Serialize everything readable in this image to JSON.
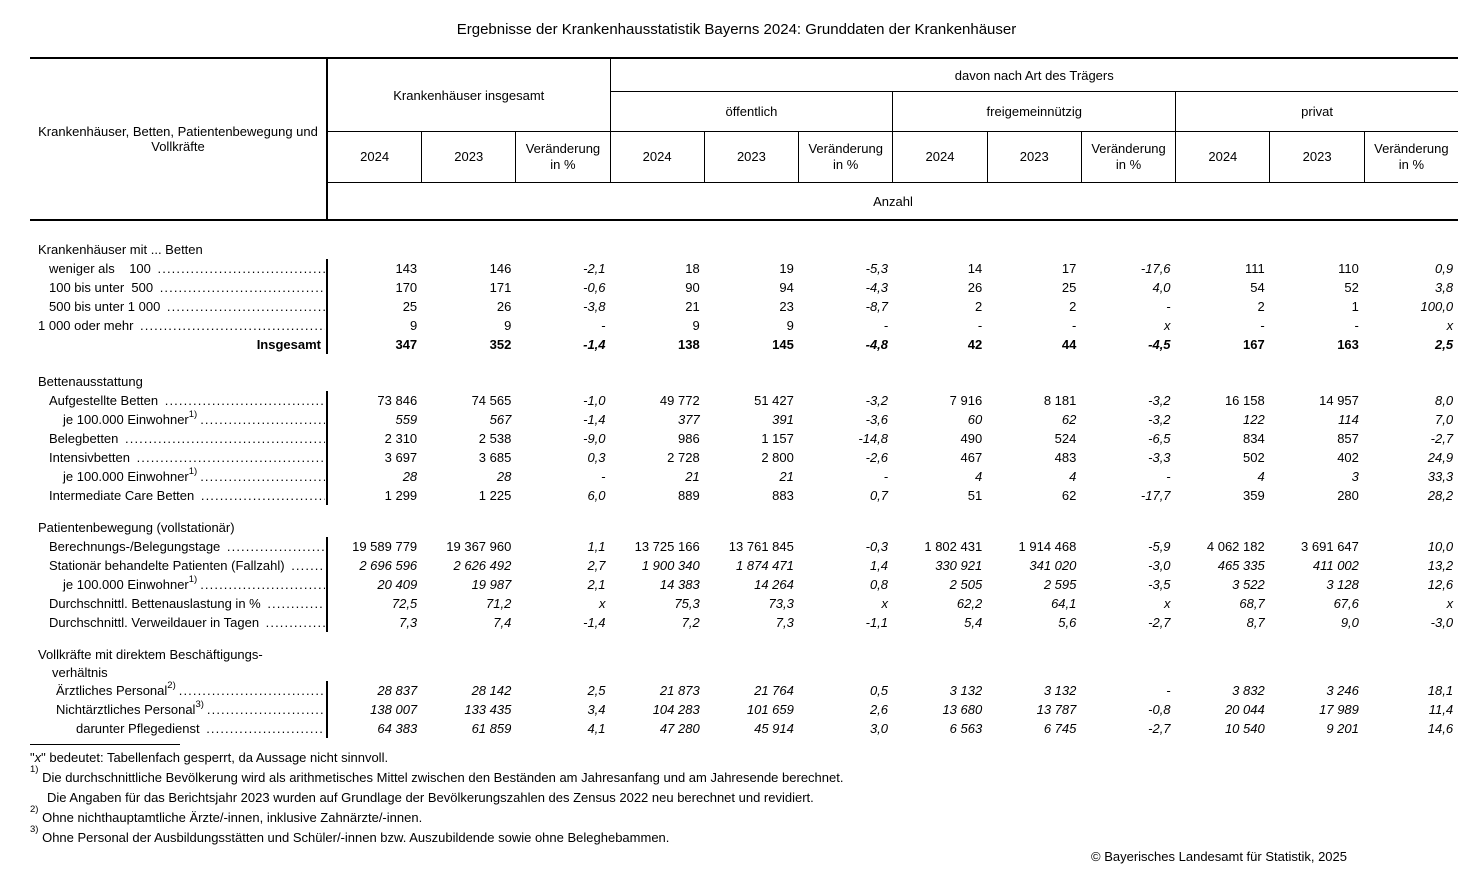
{
  "title": "Ergebnisse der Krankenhausstatistik Bayerns 2024: Grunddaten der Krankenhäuser",
  "table": {
    "stub_header": "Krankenhäuser, Betten, Patientenbewegung und Vollkräfte",
    "group_total_label": "Krankenhäuser insgesamt",
    "provider_group_label": "davon nach Art des Trägers",
    "provider_types": [
      "öffentlich",
      "freigemeinnützig",
      "privat"
    ],
    "year_columns": [
      "2024",
      "2023",
      "Veränderung in %"
    ],
    "unit_label": "Anzahl",
    "sections": [
      {
        "title_lines": [
          "Krankenhäuser mit ... Betten"
        ],
        "rows": [
          {
            "label": "weniger als    100 ",
            "indent": 1,
            "leader": true,
            "values": [
              "143",
              "146",
              "-2,1",
              "18",
              "19",
              "-5,3",
              "14",
              "17",
              "-17,6",
              "111",
              "110",
              "0,9"
            ]
          },
          {
            "label": "100 bis unter  500 ",
            "indent": 1,
            "leader": true,
            "values": [
              "170",
              "171",
              "-0,6",
              "90",
              "94",
              "-4,3",
              "26",
              "25",
              "4,0",
              "54",
              "52",
              "3,8"
            ]
          },
          {
            "label": "500 bis unter 1 000 ",
            "indent": 1,
            "leader": true,
            "values": [
              "25",
              "26",
              "-3,8",
              "21",
              "23",
              "-8,7",
              "2",
              "2",
              "-",
              "2",
              "1",
              "100,0"
            ]
          },
          {
            "label": "1 000 oder mehr ",
            "indent": 0,
            "leader": true,
            "values": [
              "9",
              "9",
              "-",
              "9",
              "9",
              "-",
              "-",
              "-",
              "x",
              "-",
              "-",
              "x"
            ]
          },
          {
            "label": "Insgesamt",
            "align": "right",
            "bold": true,
            "values": [
              "347",
              "352",
              "-1,4",
              "138",
              "145",
              "-4,8",
              "42",
              "44",
              "-4,5",
              "167",
              "163",
              "2,5"
            ]
          }
        ]
      },
      {
        "title_lines": [
          "Bettenausstattung"
        ],
        "rows": [
          {
            "label": "Aufgestellte Betten ",
            "indent": 1,
            "leader": true,
            "values": [
              "73 846",
              "74 565",
              "-1,0",
              "49 772",
              "51 427",
              "-3,2",
              "7 916",
              "8 181",
              "-3,2",
              "16 158",
              "14 957",
              "8,0"
            ]
          },
          {
            "label": "je 100.000 Einwohner",
            "sup": "1)",
            "indent": 3,
            "leader": true,
            "italic": true,
            "values": [
              "559",
              "567",
              "-1,4",
              "377",
              "391",
              "-3,6",
              "60",
              "62",
              "-3,2",
              "122",
              "114",
              "7,0"
            ]
          },
          {
            "label": "Belegbetten ",
            "indent": 1,
            "leader": true,
            "values": [
              "2 310",
              "2 538",
              "-9,0",
              "986",
              "1 157",
              "-14,8",
              "490",
              "524",
              "-6,5",
              "834",
              "857",
              "-2,7"
            ]
          },
          {
            "label": "Intensivbetten ",
            "indent": 1,
            "leader": true,
            "values": [
              "3 697",
              "3 685",
              "0,3",
              "2 728",
              "2 800",
              "-2,6",
              "467",
              "483",
              "-3,3",
              "502",
              "402",
              "24,9"
            ]
          },
          {
            "label": "je 100.000 Einwohner",
            "sup": "1)",
            "indent": 3,
            "leader": true,
            "italic": true,
            "values": [
              "28",
              "28",
              "-",
              "21",
              "21",
              "-",
              "4",
              "4",
              "-",
              "4",
              "3",
              "33,3"
            ]
          },
          {
            "label": "Intermediate Care Betten ",
            "indent": 1,
            "leader": true,
            "values": [
              "1 299",
              "1 225",
              "6,0",
              "889",
              "883",
              "0,7",
              "51",
              "62",
              "-17,7",
              "359",
              "280",
              "28,2"
            ]
          }
        ]
      },
      {
        "title_lines": [
          "Patientenbewegung (vollstationär)"
        ],
        "rows": [
          {
            "label": "Berechnungs-/Belegungstage ",
            "indent": 1,
            "leader": true,
            "values": [
              "19 589 779",
              "19 367 960",
              "1,1",
              "13 725 166",
              "13 761 845",
              "-0,3",
              "1 802 431",
              "1 914 468",
              "-5,9",
              "4 062 182",
              "3 691 647",
              "10,0"
            ]
          },
          {
            "label": "Stationär behandelte Patienten (Fallzahl) ",
            "indent": 1,
            "leader": true,
            "italic": true,
            "values": [
              "2 696 596",
              "2 626 492",
              "2,7",
              "1 900 340",
              "1 874 471",
              "1,4",
              "330 921",
              "341 020",
              "-3,0",
              "465 335",
              "411 002",
              "13,2"
            ]
          },
          {
            "label": "je 100.000 Einwohner",
            "sup": "1)",
            "indent": 3,
            "leader": true,
            "italic": true,
            "values": [
              "20 409",
              "19 987",
              "2,1",
              "14 383",
              "14 264",
              "0,8",
              "2 505",
              "2 595",
              "-3,5",
              "3 522",
              "3 128",
              "12,6"
            ]
          },
          {
            "label": "Durchschnittl. Bettenauslastung in % ",
            "indent": 1,
            "leader": true,
            "italic": true,
            "values": [
              "72,5",
              "71,2",
              "x",
              "75,3",
              "73,3",
              "x",
              "62,2",
              "64,1",
              "x",
              "68,7",
              "67,6",
              "x"
            ]
          },
          {
            "label": "Durchschnittl. Verweildauer in Tagen ",
            "indent": 1,
            "leader": true,
            "italic": true,
            "values": [
              "7,3",
              "7,4",
              "-1,4",
              "7,2",
              "7,3",
              "-1,1",
              "5,4",
              "5,6",
              "-2,7",
              "8,7",
              "9,0",
              "-3,0"
            ]
          }
        ]
      },
      {
        "title_lines": [
          "Vollkräfte mit direktem Beschäftigungs-",
          "verhältnis"
        ],
        "rows": [
          {
            "label": "Ärztliches Personal",
            "sup": "2)",
            "indent": 2,
            "leader": true,
            "italic": true,
            "values": [
              "28 837",
              "28 142",
              "2,5",
              "21 873",
              "21 764",
              "0,5",
              "3 132",
              "3 132",
              "-",
              "3 832",
              "3 246",
              "18,1"
            ]
          },
          {
            "label": "Nichtärztliches Personal",
            "sup": "3)",
            "indent": 2,
            "leader": true,
            "italic": true,
            "values": [
              "138 007",
              "133 435",
              "3,4",
              "104 283",
              "101 659",
              "2,6",
              "13 680",
              "13 787",
              "-0,8",
              "20 044",
              "17 989",
              "11,4"
            ]
          },
          {
            "label": "darunter Pflegedienst ",
            "indent": 4,
            "leader": true,
            "italic": true,
            "values": [
              "64 383",
              "61 859",
              "4,1",
              "47 280",
              "45 914",
              "3,0",
              "6 563",
              "6 745",
              "-2,7",
              "10 540",
              "9 201",
              "14,6"
            ]
          }
        ]
      }
    ]
  },
  "footnotes": {
    "x_note": {
      "pre": "\"",
      "x": "x",
      "post": "\" bedeutet: Tabellenfach gesperrt, da Aussage nicht sinnvoll."
    },
    "f1": {
      "sup": "1)",
      "line1": "Die durchschnittliche Bevölkerung wird als arithmetisches Mittel zwischen den Beständen am Jahresanfang und am Jahresende berechnet.",
      "line2": "Die Angaben für das Berichtsjahr 2023 wurden auf Grundlage der Bevölkerungszahlen des Zensus 2022 neu berechnet und revidiert."
    },
    "f2": {
      "sup": "2)",
      "line1": "Ohne nichthauptamtliche Ärzte/-innen, inklusive Zahnärzte/-innen."
    },
    "f3": {
      "sup": "3)",
      "line1": "Ohne Personal der Ausbildungsstätten und Schüler/-innen bzw. Auszubildende sowie ohne Beleghebammen."
    }
  },
  "copyright": "© Bayerisches Landesamt für Statistik, 2025"
}
